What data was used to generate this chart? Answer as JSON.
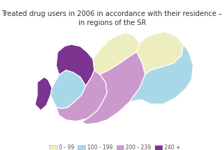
{
  "title_line1": "Treated drug users in 2006 in accordance with their residence –",
  "title_line2": "in regions of the SR",
  "title_fontsize": 7.2,
  "background_color": "#ffffff",
  "legend_items": [
    {
      "label": "0 - 99",
      "color": "#eeedc0"
    },
    {
      "label": "100 - 199",
      "color": "#a8d8e8"
    },
    {
      "label": "200 - 239",
      "color": "#cc99cc"
    },
    {
      "label": "240 +",
      "color": "#7b3490"
    }
  ],
  "region_colors": {
    "BA": "#7b3490",
    "TT": "#a8d8e8",
    "TN": "#7b3490",
    "NR": "#cc99cc",
    "ZA": "#eeedc0",
    "BB": "#cc99cc",
    "PO": "#eeedc0",
    "KE": "#a8d8e8"
  },
  "xlim": [
    16.5,
    22.65
  ],
  "ylim": [
    47.3,
    49.75
  ],
  "edge_color": "#ffffff",
  "edge_width": 0.9
}
